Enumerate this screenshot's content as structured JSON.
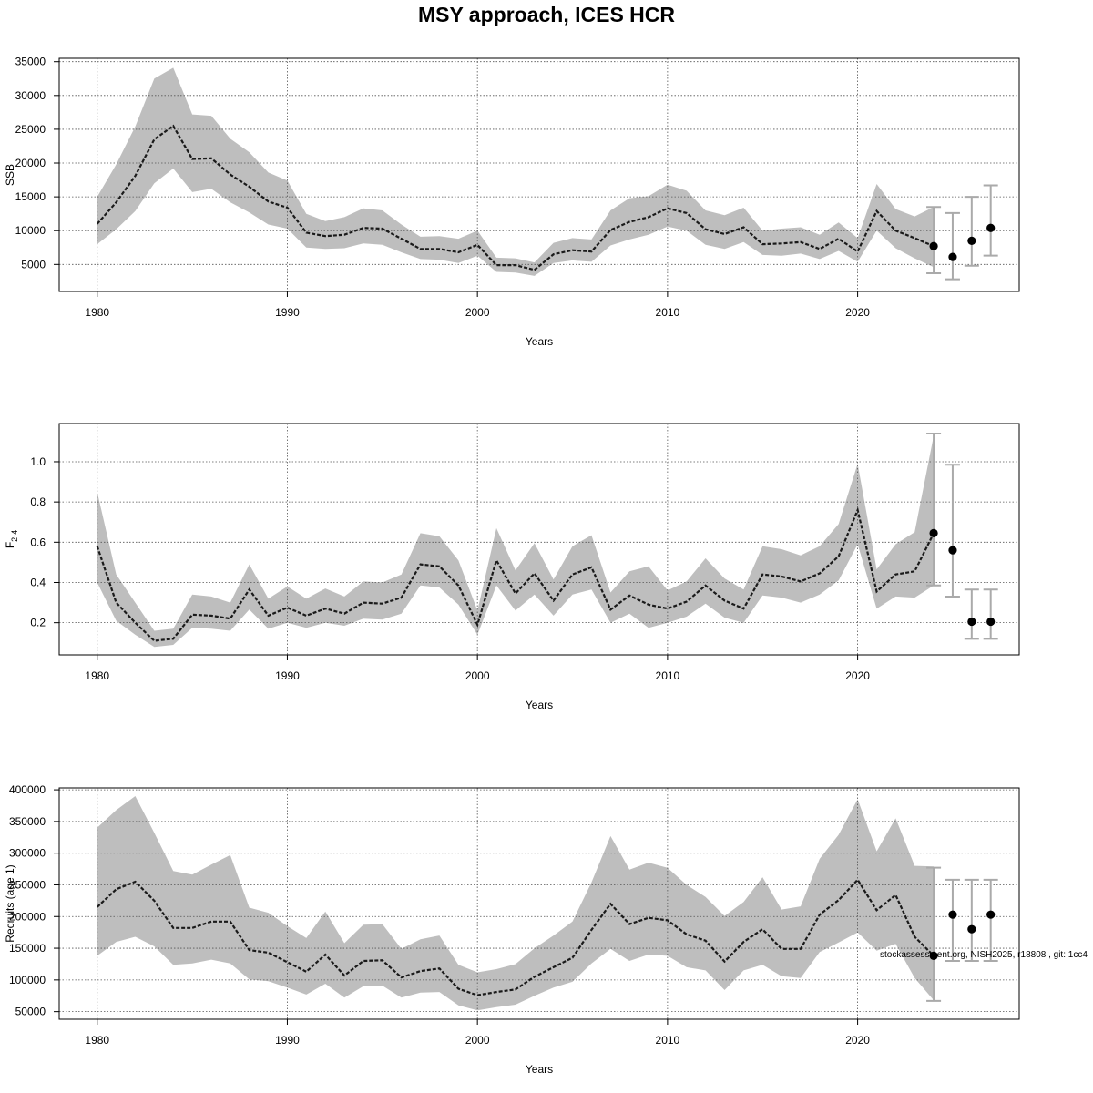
{
  "title": "MSY approach, ICES HCR",
  "credit": "stockassessment.org, NISH2025, r18808 , git: 1cc4",
  "colors": {
    "band": "#bebebe",
    "line": "#1a1a1a",
    "grid": "#555555",
    "point": "#000000",
    "errorbar": "#aaaaaa"
  },
  "chart_data": [
    {
      "type": "line",
      "name": "ssb",
      "ylabel": "SSB",
      "xlabel": "Years",
      "xlim": [
        1978,
        2028.5
      ],
      "ylim": [
        1000,
        35500
      ],
      "xticks": [
        1980,
        1990,
        2000,
        2010,
        2020
      ],
      "yticks": [
        5000,
        10000,
        15000,
        20000,
        25000,
        30000,
        35000
      ],
      "grid": true,
      "years": [
        1980,
        1981,
        1982,
        1983,
        1984,
        1985,
        1986,
        1987,
        1988,
        1989,
        1990,
        1991,
        1992,
        1993,
        1994,
        1995,
        1996,
        1997,
        1998,
        1999,
        2000,
        2001,
        2002,
        2003,
        2004,
        2005,
        2006,
        2007,
        2008,
        2009,
        2010,
        2011,
        2012,
        2013,
        2014,
        2015,
        2016,
        2017,
        2018,
        2019,
        2020,
        2021,
        2022,
        2023,
        2024
      ],
      "estimate": [
        11000,
        14200,
        18100,
        23500,
        25500,
        20600,
        20700,
        18300,
        16500,
        14300,
        13400,
        9700,
        9200,
        9400,
        10400,
        10300,
        8800,
        7300,
        7300,
        6800,
        7900,
        4900,
        4900,
        4200,
        6500,
        7100,
        6900,
        10100,
        11300,
        12000,
        13300,
        12600,
        10200,
        9500,
        10500,
        8000,
        8100,
        8300,
        7300,
        8800,
        6900,
        12900,
        10000,
        8900,
        7700
      ],
      "lower": [
        8000,
        10200,
        12900,
        17000,
        19200,
        15700,
        16200,
        14200,
        12700,
        10900,
        10300,
        7500,
        7300,
        7400,
        8100,
        7900,
        6800,
        5800,
        5700,
        5200,
        6300,
        3900,
        3800,
        3300,
        5200,
        5600,
        5400,
        7800,
        8700,
        9400,
        10600,
        10000,
        7900,
        7300,
        8300,
        6400,
        6300,
        6600,
        5800,
        7000,
        5400,
        10000,
        7400,
        5900,
        4600
      ],
      "upper": [
        15000,
        19800,
        25400,
        32500,
        34100,
        27200,
        27000,
        23600,
        21600,
        18600,
        17400,
        12500,
        11400,
        12000,
        13300,
        13000,
        10900,
        9100,
        9200,
        8800,
        10000,
        6000,
        5900,
        5300,
        8200,
        8900,
        8700,
        13000,
        14800,
        15100,
        16800,
        15900,
        13000,
        12300,
        13400,
        10000,
        10300,
        10500,
        9400,
        11200,
        8900,
        16900,
        13200,
        12100,
        13500
      ],
      "forecast": [
        {
          "year": 2024,
          "value": 7700,
          "lower": 3700,
          "upper": 13500
        },
        {
          "year": 2025,
          "value": 6100,
          "lower": 2800,
          "upper": 12600
        },
        {
          "year": 2026,
          "value": 8500,
          "lower": 4800,
          "upper": 15000
        },
        {
          "year": 2027,
          "value": 10400,
          "lower": 6300,
          "upper": 16700
        }
      ]
    },
    {
      "type": "line",
      "name": "fbar",
      "ylabel": "F",
      "ylabel_sub": "2-4",
      "xlabel": "Years",
      "xlim": [
        1978,
        2028.5
      ],
      "ylim": [
        0.04,
        1.19
      ],
      "xticks": [
        1980,
        1990,
        2000,
        2010,
        2020
      ],
      "yticks": [
        0.2,
        0.4,
        0.6,
        0.8,
        1.0
      ],
      "ytick_labels": [
        "0.2",
        "0.4",
        "0.6",
        "0.8",
        "1.0"
      ],
      "grid": true,
      "years": [
        1980,
        1981,
        1982,
        1983,
        1984,
        1985,
        1986,
        1987,
        1988,
        1989,
        1990,
        1991,
        1992,
        1993,
        1994,
        1995,
        1996,
        1997,
        1998,
        1999,
        2000,
        2001,
        2002,
        2003,
        2004,
        2005,
        2006,
        2007,
        2008,
        2009,
        2010,
        2011,
        2012,
        2013,
        2014,
        2015,
        2016,
        2017,
        2018,
        2019,
        2020,
        2021,
        2022,
        2023,
        2024
      ],
      "estimate": [
        0.58,
        0.3,
        0.2,
        0.11,
        0.12,
        0.24,
        0.235,
        0.22,
        0.365,
        0.235,
        0.275,
        0.235,
        0.27,
        0.245,
        0.3,
        0.295,
        0.325,
        0.49,
        0.48,
        0.385,
        0.19,
        0.51,
        0.345,
        0.445,
        0.31,
        0.44,
        0.475,
        0.265,
        0.335,
        0.29,
        0.27,
        0.305,
        0.385,
        0.31,
        0.27,
        0.44,
        0.43,
        0.405,
        0.445,
        0.53,
        0.76,
        0.355,
        0.44,
        0.455,
        0.645
      ],
      "lower": [
        0.4,
        0.21,
        0.14,
        0.08,
        0.09,
        0.175,
        0.17,
        0.16,
        0.265,
        0.17,
        0.2,
        0.175,
        0.2,
        0.185,
        0.22,
        0.215,
        0.245,
        0.385,
        0.375,
        0.29,
        0.14,
        0.385,
        0.26,
        0.34,
        0.235,
        0.34,
        0.365,
        0.2,
        0.245,
        0.175,
        0.2,
        0.23,
        0.295,
        0.225,
        0.2,
        0.335,
        0.325,
        0.3,
        0.34,
        0.41,
        0.59,
        0.27,
        0.33,
        0.325,
        0.385
      ],
      "upper": [
        0.85,
        0.44,
        0.3,
        0.16,
        0.17,
        0.34,
        0.33,
        0.3,
        0.49,
        0.32,
        0.38,
        0.32,
        0.37,
        0.33,
        0.405,
        0.4,
        0.44,
        0.645,
        0.63,
        0.51,
        0.26,
        0.67,
        0.46,
        0.595,
        0.415,
        0.58,
        0.635,
        0.35,
        0.455,
        0.48,
        0.36,
        0.405,
        0.52,
        0.42,
        0.365,
        0.58,
        0.565,
        0.535,
        0.58,
        0.69,
        0.99,
        0.465,
        0.59,
        0.65,
        1.13
      ],
      "forecast": [
        {
          "year": 2024,
          "value": 0.645,
          "lower": 0.385,
          "upper": 1.14
        },
        {
          "year": 2025,
          "value": 0.56,
          "lower": 0.33,
          "upper": 0.985
        },
        {
          "year": 2026,
          "value": 0.205,
          "lower": 0.12,
          "upper": 0.365
        },
        {
          "year": 2027,
          "value": 0.205,
          "lower": 0.12,
          "upper": 0.365
        }
      ]
    },
    {
      "type": "line",
      "name": "recruits",
      "ylabel": "Recruits (age 1)",
      "xlabel": "Years",
      "xlim": [
        1978,
        2028.5
      ],
      "ylim": [
        38000,
        403000
      ],
      "xticks": [
        1980,
        1990,
        2000,
        2010,
        2020
      ],
      "yticks": [
        50000,
        100000,
        150000,
        200000,
        250000,
        300000,
        350000,
        400000
      ],
      "grid": true,
      "years": [
        1980,
        1981,
        1982,
        1983,
        1984,
        1985,
        1986,
        1987,
        1988,
        1989,
        1990,
        1991,
        1992,
        1993,
        1994,
        1995,
        1996,
        1997,
        1998,
        1999,
        2000,
        2001,
        2002,
        2003,
        2004,
        2005,
        2006,
        2007,
        2008,
        2009,
        2010,
        2011,
        2012,
        2013,
        2014,
        2015,
        2016,
        2017,
        2018,
        2019,
        2020,
        2021,
        2022,
        2023,
        2024
      ],
      "estimate": [
        215000,
        243000,
        255000,
        225000,
        182000,
        182000,
        192000,
        192000,
        147000,
        143000,
        128000,
        113000,
        140000,
        107000,
        130000,
        131000,
        104000,
        114000,
        118000,
        86000,
        76000,
        81000,
        85000,
        105000,
        120000,
        135000,
        179000,
        220000,
        188000,
        198000,
        194000,
        172000,
        162000,
        129000,
        160000,
        180000,
        149000,
        149000,
        203000,
        226000,
        258000,
        210000,
        234000,
        168000,
        138000
      ],
      "lower": [
        138000,
        160000,
        168000,
        153000,
        124000,
        126000,
        132000,
        126000,
        101000,
        98000,
        88000,
        77000,
        94000,
        72000,
        90000,
        91000,
        72000,
        80000,
        81000,
        60000,
        52000,
        57000,
        61000,
        75000,
        88000,
        97000,
        126000,
        149000,
        130000,
        140000,
        138000,
        120000,
        115000,
        84000,
        115000,
        124000,
        106000,
        103000,
        144000,
        159000,
        175000,
        146000,
        157000,
        103000,
        68000
      ],
      "upper": [
        340000,
        368000,
        390000,
        332000,
        272000,
        266000,
        282000,
        297000,
        214000,
        206000,
        185000,
        166000,
        208000,
        158000,
        187000,
        188000,
        149000,
        164000,
        170000,
        124000,
        112000,
        117000,
        125000,
        150000,
        170000,
        192000,
        254000,
        327000,
        274000,
        285000,
        277000,
        250000,
        231000,
        201000,
        223000,
        262000,
        211000,
        216000,
        291000,
        329000,
        385000,
        303000,
        355000,
        280000,
        279000
      ],
      "forecast": [
        {
          "year": 2024,
          "value": 138000,
          "lower": 67000,
          "upper": 277000
        },
        {
          "year": 2025,
          "value": 203000,
          "lower": 130000,
          "upper": 258000
        },
        {
          "year": 2026,
          "value": 180000,
          "lower": 130000,
          "upper": 258000
        },
        {
          "year": 2027,
          "value": 203000,
          "lower": 130000,
          "upper": 258000
        }
      ]
    }
  ]
}
